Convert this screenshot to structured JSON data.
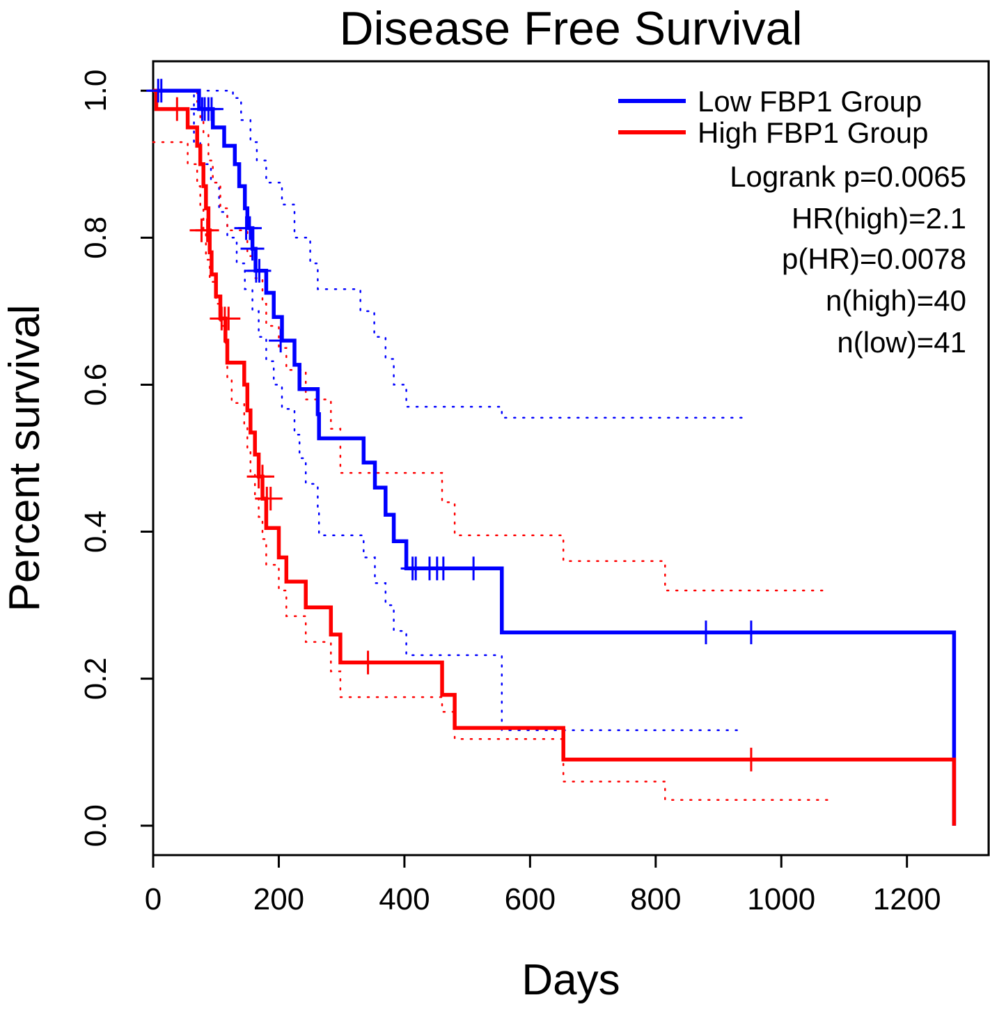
{
  "chart_data": {
    "type": "line",
    "subtype": "kaplan-meier",
    "title": "Disease Free Survival",
    "xlabel": "Days",
    "ylabel": "Percent survival",
    "xlim": [
      0,
      1330
    ],
    "ylim": [
      -0.04,
      1.04
    ],
    "xticks": [
      0,
      200,
      400,
      600,
      800,
      1000,
      1200
    ],
    "yticks": [
      0.0,
      0.2,
      0.4,
      0.6,
      0.8,
      1.0
    ],
    "grid": false,
    "legend_position": "top-right",
    "legend": [
      {
        "label": "Low FBP1 Group",
        "color": "#0000ff"
      },
      {
        "label": "High FBP1 Group",
        "color": "#ff0000"
      }
    ],
    "stats": [
      "Logrank p=0.0065",
      "HR(high)=2.1",
      "p(HR)=0.0078",
      "n(high)=40",
      "n(low)=41"
    ],
    "series": [
      {
        "name": "Low FBP1 Group",
        "color": "#0000ff",
        "steps": [
          [
            0,
            1.0
          ],
          [
            73,
            0.975
          ],
          [
            95,
            0.95
          ],
          [
            113,
            0.925
          ],
          [
            130,
            0.9
          ],
          [
            137,
            0.87
          ],
          [
            146,
            0.84
          ],
          [
            150,
            0.813
          ],
          [
            158,
            0.785
          ],
          [
            163,
            0.755
          ],
          [
            180,
            0.725
          ],
          [
            192,
            0.692
          ],
          [
            205,
            0.66
          ],
          [
            225,
            0.627
          ],
          [
            233,
            0.594
          ],
          [
            262,
            0.56
          ],
          [
            264,
            0.527
          ],
          [
            335,
            0.494
          ],
          [
            353,
            0.46
          ],
          [
            370,
            0.423
          ],
          [
            383,
            0.387
          ],
          [
            403,
            0.35
          ],
          [
            555,
            0.263
          ],
          [
            1275,
            0.263
          ],
          [
            1275,
            0.0
          ]
        ],
        "censors": [
          [
            8,
            1.0
          ],
          [
            13,
            1.0
          ],
          [
            78,
            0.975
          ],
          [
            82,
            0.975
          ],
          [
            88,
            0.975
          ],
          [
            93,
            0.975
          ],
          [
            148,
            0.813
          ],
          [
            154,
            0.813
          ],
          [
            158,
            0.785
          ],
          [
            164,
            0.755
          ],
          [
            169,
            0.755
          ],
          [
            203,
            0.66
          ],
          [
            413,
            0.35
          ],
          [
            418,
            0.35
          ],
          [
            440,
            0.35
          ],
          [
            452,
            0.35
          ],
          [
            462,
            0.35
          ],
          [
            510,
            0.35
          ],
          [
            880,
            0.263
          ],
          [
            952,
            0.263
          ]
        ],
        "ci_upper": [
          [
            0,
            1.0
          ],
          [
            95,
            1.0
          ],
          [
            127,
            0.99
          ],
          [
            140,
            0.96
          ],
          [
            155,
            0.93
          ],
          [
            165,
            0.905
          ],
          [
            180,
            0.875
          ],
          [
            205,
            0.845
          ],
          [
            225,
            0.8
          ],
          [
            250,
            0.765
          ],
          [
            262,
            0.73
          ],
          [
            330,
            0.7
          ],
          [
            352,
            0.665
          ],
          [
            370,
            0.635
          ],
          [
            383,
            0.6
          ],
          [
            403,
            0.57
          ],
          [
            555,
            0.555
          ],
          [
            940,
            0.555
          ]
        ],
        "ci_lower": [
          [
            0,
            1.0
          ],
          [
            65,
            0.93
          ],
          [
            75,
            0.9
          ],
          [
            92,
            0.875
          ],
          [
            105,
            0.835
          ],
          [
            118,
            0.8
          ],
          [
            133,
            0.765
          ],
          [
            146,
            0.73
          ],
          [
            158,
            0.7
          ],
          [
            168,
            0.665
          ],
          [
            180,
            0.632
          ],
          [
            192,
            0.6
          ],
          [
            205,
            0.567
          ],
          [
            225,
            0.532
          ],
          [
            233,
            0.5
          ],
          [
            243,
            0.465
          ],
          [
            262,
            0.43
          ],
          [
            264,
            0.395
          ],
          [
            335,
            0.365
          ],
          [
            353,
            0.33
          ],
          [
            370,
            0.3
          ],
          [
            383,
            0.265
          ],
          [
            403,
            0.232
          ],
          [
            555,
            0.13
          ],
          [
            940,
            0.13
          ]
        ]
      },
      {
        "name": "High FBP1 Group",
        "color": "#ff0000",
        "steps": [
          [
            0,
            1.0
          ],
          [
            5,
            0.975
          ],
          [
            55,
            0.95
          ],
          [
            70,
            0.925
          ],
          [
            75,
            0.9
          ],
          [
            80,
            0.87
          ],
          [
            84,
            0.84
          ],
          [
            88,
            0.81
          ],
          [
            90,
            0.78
          ],
          [
            93,
            0.75
          ],
          [
            100,
            0.72
          ],
          [
            107,
            0.69
          ],
          [
            115,
            0.66
          ],
          [
            118,
            0.63
          ],
          [
            145,
            0.6
          ],
          [
            150,
            0.565
          ],
          [
            155,
            0.535
          ],
          [
            162,
            0.505
          ],
          [
            168,
            0.475
          ],
          [
            174,
            0.445
          ],
          [
            180,
            0.405
          ],
          [
            200,
            0.365
          ],
          [
            212,
            0.332
          ],
          [
            243,
            0.297
          ],
          [
            283,
            0.26
          ],
          [
            298,
            0.222
          ],
          [
            460,
            0.178
          ],
          [
            480,
            0.133
          ],
          [
            653,
            0.09
          ],
          [
            1275,
            0.09
          ],
          [
            1275,
            0.0
          ]
        ],
        "censors": [
          [
            38,
            0.975
          ],
          [
            77,
            0.81
          ],
          [
            86,
            0.81
          ],
          [
            109,
            0.69
          ],
          [
            114,
            0.69
          ],
          [
            120,
            0.69
          ],
          [
            168,
            0.475
          ],
          [
            174,
            0.475
          ],
          [
            181,
            0.445
          ],
          [
            187,
            0.445
          ],
          [
            342,
            0.222
          ],
          [
            952,
            0.09
          ]
        ],
        "ci_upper": [
          [
            0,
            1.0
          ],
          [
            55,
            1.0
          ],
          [
            70,
            0.985
          ],
          [
            75,
            0.96
          ],
          [
            80,
            0.94
          ],
          [
            88,
            0.905
          ],
          [
            95,
            0.875
          ],
          [
            107,
            0.84
          ],
          [
            118,
            0.81
          ],
          [
            150,
            0.775
          ],
          [
            162,
            0.745
          ],
          [
            174,
            0.71
          ],
          [
            180,
            0.68
          ],
          [
            200,
            0.65
          ],
          [
            212,
            0.62
          ],
          [
            243,
            0.58
          ],
          [
            283,
            0.54
          ],
          [
            298,
            0.48
          ],
          [
            460,
            0.44
          ],
          [
            480,
            0.395
          ],
          [
            653,
            0.36
          ],
          [
            815,
            0.32
          ],
          [
            1075,
            0.32
          ]
        ],
        "ci_lower": [
          [
            0,
            0.93
          ],
          [
            55,
            0.9
          ],
          [
            70,
            0.87
          ],
          [
            75,
            0.84
          ],
          [
            80,
            0.81
          ],
          [
            84,
            0.77
          ],
          [
            90,
            0.74
          ],
          [
            100,
            0.71
          ],
          [
            107,
            0.68
          ],
          [
            115,
            0.65
          ],
          [
            118,
            0.61
          ],
          [
            125,
            0.575
          ],
          [
            145,
            0.545
          ],
          [
            150,
            0.51
          ],
          [
            155,
            0.48
          ],
          [
            162,
            0.45
          ],
          [
            168,
            0.42
          ],
          [
            174,
            0.39
          ],
          [
            180,
            0.355
          ],
          [
            200,
            0.32
          ],
          [
            212,
            0.285
          ],
          [
            243,
            0.25
          ],
          [
            283,
            0.21
          ],
          [
            298,
            0.175
          ],
          [
            460,
            0.155
          ],
          [
            480,
            0.118
          ],
          [
            653,
            0.09
          ],
          [
            653,
            0.06
          ],
          [
            815,
            0.035
          ],
          [
            1075,
            0.035
          ]
        ]
      }
    ]
  }
}
